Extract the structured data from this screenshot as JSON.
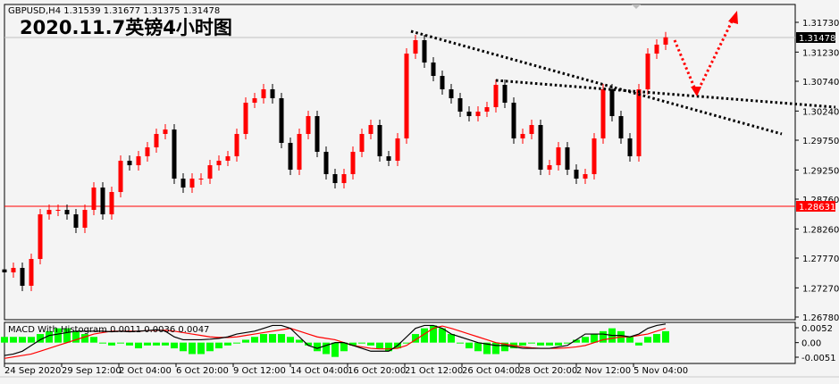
{
  "header": {
    "symbol_info": "GBPUSD,H4  1.31539 1.31677 1.31375 1.31478",
    "title": "2020.11.7英镑4小时图"
  },
  "indicator": {
    "label": "MACD With Histogram 0.0011 0.0036 0.0047",
    "axis_labels": [
      "0.0052",
      "0.00",
      "-0.0051"
    ]
  },
  "price_axis": {
    "labels": [
      "1.31730",
      "1.31230",
      "1.30740",
      "1.30240",
      "1.29750",
      "1.29250",
      "1.28760",
      "1.28260",
      "1.27770",
      "1.27270",
      "1.26780"
    ],
    "current_price": "1.31478",
    "marked_price": "1.28631"
  },
  "colors": {
    "bull": "#ff0000",
    "bear": "#000000",
    "macd_main": "#000000",
    "macd_signal": "#ff0000",
    "histogram": "#00ff00",
    "marked_line": "#ff0000",
    "current_line": "#c0c0c0",
    "arrow": "#ff0000",
    "trendline": "#000000"
  },
  "chart_data": {
    "type": "candlestick",
    "symbol": "GBPUSD",
    "timeframe": "H4",
    "ylim": [
      1.2678,
      1.3173
    ],
    "x_tick_labels": [
      "24 Sep 2020",
      "29 Sep 12:00",
      "2 Oct 04:00",
      "6 Oct 20:00",
      "9 Oct 12:00",
      "14 Oct 04:00",
      "16 Oct 20:00",
      "21 Oct 12:00",
      "26 Oct 04:00",
      "28 Oct 20:00",
      "2 Nov 12:00",
      "5 Nov 04:00"
    ],
    "closes": [
      1.2753,
      1.27605,
      1.27305,
      1.27755,
      1.28505,
      1.2858,
      1.2858,
      1.28505,
      1.2828,
      1.2858,
      1.28955,
      1.28505,
      1.2888,
      1.29405,
      1.2933,
      1.2948,
      1.2963,
      1.29855,
      1.2993,
      1.29105,
      1.28955,
      1.29105,
      1.29105,
      1.2933,
      1.29405,
      1.2948,
      1.29855,
      1.3038,
      1.30455,
      1.30605,
      1.30455,
      1.29705,
      1.29255,
      1.29855,
      1.30155,
      1.29555,
      1.2918,
      1.2903,
      1.2918,
      1.29555,
      1.29855,
      1.30005,
      1.2948,
      1.29405,
      1.2978,
      1.31205,
      1.3143,
      1.31055,
      1.3083,
      1.30605,
      1.30455,
      1.3023,
      1.30155,
      1.3023,
      1.30305,
      1.3068,
      1.3038,
      1.2978,
      1.29855,
      1.30005,
      1.29255,
      1.2933,
      1.2963,
      1.29255,
      1.29105,
      1.2918,
      1.2978,
      1.30605,
      1.30155,
      1.2978,
      1.2948,
      1.30605,
      1.31205,
      1.31355,
      1.31478
    ],
    "macd_histogram": [
      0.002,
      0.002,
      0.002,
      0.002,
      0.003,
      0.004,
      0.005,
      0.005,
      0.004,
      0.003,
      0.002,
      0.0,
      -0.001,
      0.0,
      -0.001,
      -0.002,
      -0.001,
      -0.001,
      -0.001,
      -0.002,
      -0.003,
      -0.004,
      -0.004,
      -0.003,
      -0.002,
      -0.001,
      0.0,
      0.001,
      0.002,
      0.003,
      0.003,
      0.003,
      0.002,
      0.001,
      -0.001,
      -0.003,
      -0.004,
      -0.005,
      -0.003,
      -0.001,
      0.0,
      -0.001,
      -0.002,
      -0.003,
      -0.002,
      0.0,
      0.003,
      0.005,
      0.006,
      0.005,
      0.003,
      0.0,
      -0.002,
      -0.003,
      -0.004,
      -0.004,
      -0.003,
      -0.002,
      -0.001,
      0.0,
      -0.001,
      -0.001,
      -0.001,
      0.0,
      0.001,
      0.002,
      0.003,
      0.004,
      0.005,
      0.004,
      0.002,
      -0.001,
      0.002,
      0.003,
      0.004
    ],
    "macd_main": [
      -0.0045,
      -0.004,
      -0.003,
      -0.001,
      0.001,
      0.0025,
      0.003,
      0.0035,
      0.004,
      0.004,
      0.004,
      0.004,
      0.0038,
      0.004,
      0.0038,
      0.004,
      0.0042,
      0.0045,
      0.004,
      0.002,
      0.001,
      0.001,
      0.001,
      0.0012,
      0.0015,
      0.002,
      0.003,
      0.0035,
      0.004,
      0.005,
      0.006,
      0.006,
      0.005,
      0.002,
      -0.001,
      -0.002,
      -0.001,
      0.0,
      0.0,
      -0.001,
      -0.002,
      -0.003,
      -0.003,
      -0.003,
      -0.001,
      0.002,
      0.005,
      0.006,
      0.006,
      0.005,
      0.003,
      0.002,
      0.001,
      0.0,
      -0.0005,
      -0.001,
      -0.001,
      -0.0015,
      -0.002,
      -0.002,
      -0.002,
      -0.002,
      -0.0015,
      -0.001,
      0.001,
      0.003,
      0.003,
      0.003,
      0.0025,
      0.0025,
      0.002,
      0.003,
      0.005,
      0.006,
      0.0065
    ],
    "macd_signal": [
      -0.0055,
      -0.005,
      -0.0045,
      -0.004,
      -0.003,
      -0.002,
      -0.001,
      0.0,
      0.001,
      0.002,
      0.003,
      0.0035,
      0.004,
      0.004,
      0.004,
      0.004,
      0.0042,
      0.0043,
      0.0043,
      0.004,
      0.0035,
      0.003,
      0.0025,
      0.002,
      0.0018,
      0.0018,
      0.002,
      0.0025,
      0.003,
      0.0035,
      0.004,
      0.0045,
      0.005,
      0.004,
      0.003,
      0.002,
      0.0015,
      0.001,
      0.0,
      -0.001,
      -0.0015,
      -0.002,
      -0.0022,
      -0.0022,
      -0.002,
      -0.001,
      0.001,
      0.003,
      0.005,
      0.0058,
      0.005,
      0.004,
      0.003,
      0.002,
      0.001,
      0.0,
      -0.0005,
      -0.001,
      -0.0015,
      -0.0018,
      -0.002,
      -0.002,
      -0.002,
      -0.0018,
      -0.0015,
      -0.001,
      0.0,
      0.001,
      0.0015,
      0.002,
      0.002,
      0.0025,
      0.003,
      0.004,
      0.005
    ],
    "macd_ylim": [
      -0.0051,
      0.0052
    ],
    "grid": false
  }
}
